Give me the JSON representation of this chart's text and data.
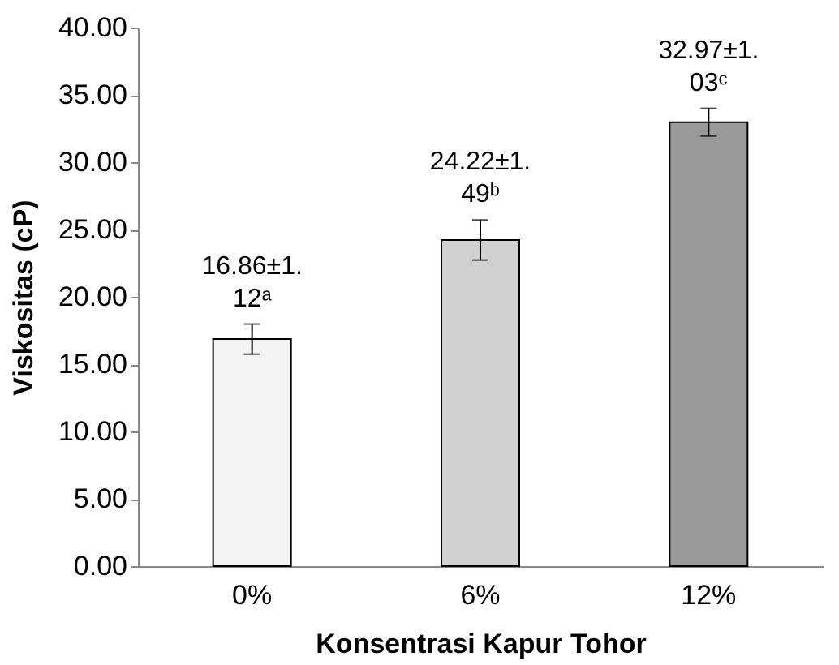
{
  "chart_data": {
    "type": "bar",
    "xlabel": "Konsentrasi Kapur Tohor",
    "ylabel": "Viskositas (cP)",
    "categories": [
      "0%",
      "6%",
      "12%"
    ],
    "values": [
      16.86,
      24.22,
      32.97
    ],
    "errors": [
      1.12,
      1.49,
      1.03
    ],
    "value_labels": [
      "16.86±1.12ᵃ",
      "24.22±1.49ᵇ",
      "32.97±1.03ᶜ"
    ],
    "colors": [
      "#f4f4f4",
      "#d0d0d0",
      "#9a9a9a"
    ],
    "ylim": [
      0,
      40
    ],
    "yticks": [
      {
        "value": 0,
        "label": "0.00"
      },
      {
        "value": 5,
        "label": "5.00"
      },
      {
        "value": 10,
        "label": "10.00"
      },
      {
        "value": 15,
        "label": "15.00"
      },
      {
        "value": 20,
        "label": "20.00"
      },
      {
        "value": 25,
        "label": "25.00"
      },
      {
        "value": 30,
        "label": "30.00"
      },
      {
        "value": 35,
        "label": "35.00"
      },
      {
        "value": 40,
        "label": "40.00"
      }
    ],
    "grid": false,
    "legend": false
  }
}
